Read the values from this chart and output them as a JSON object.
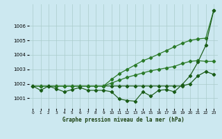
{
  "title": "Graphe pression niveau de la mer (hPa)",
  "x_labels": [
    "0",
    "1",
    "2",
    "3",
    "4",
    "5",
    "6",
    "7",
    "8",
    "9",
    "10",
    "11",
    "12",
    "13",
    "14",
    "15",
    "16",
    "17",
    "18",
    "19",
    "20",
    "21",
    "22",
    "23"
  ],
  "ylim": [
    1000.3,
    1007.5
  ],
  "yticks": [
    1001,
    1002,
    1003,
    1004,
    1005,
    1006
  ],
  "background_color": "#cce8f0",
  "grid_color": "#aacccc",
  "line_color_dark": "#1a5c18",
  "line_color_mid": "#2a7a28",
  "obs_line": [
    1001.85,
    1001.55,
    1001.85,
    1001.65,
    1001.45,
    1001.6,
    1001.75,
    1001.55,
    1001.55,
    1001.55,
    1001.45,
    1000.95,
    1000.85,
    1000.8,
    1001.45,
    1001.15,
    1001.55,
    1001.6,
    1001.45,
    1001.95,
    1002.55,
    1003.5,
    1004.65,
    1007.05
  ],
  "upper_env": [
    1001.85,
    1001.85,
    1001.85,
    1001.85,
    1001.85,
    1001.85,
    1001.85,
    1001.85,
    1001.85,
    1001.85,
    1002.3,
    1002.7,
    1003.0,
    1003.3,
    1003.6,
    1003.8,
    1004.05,
    1004.3,
    1004.55,
    1004.8,
    1005.0,
    1005.1,
    1005.15,
    1007.05
  ],
  "lower_env": [
    1001.85,
    1001.85,
    1001.85,
    1001.85,
    1001.85,
    1001.85,
    1001.85,
    1001.85,
    1001.85,
    1001.85,
    1001.85,
    1001.85,
    1001.85,
    1001.85,
    1001.85,
    1001.85,
    1001.85,
    1001.85,
    1001.85,
    1001.85,
    1002.0,
    1002.55,
    1002.85,
    1002.65
  ],
  "mid_line": [
    1001.85,
    1001.85,
    1001.85,
    1001.85,
    1001.85,
    1001.85,
    1001.85,
    1001.85,
    1001.85,
    1001.85,
    1002.05,
    1002.25,
    1002.45,
    1002.6,
    1002.75,
    1002.9,
    1003.0,
    1003.1,
    1003.2,
    1003.4,
    1003.55,
    1003.6,
    1003.55,
    1003.55
  ]
}
